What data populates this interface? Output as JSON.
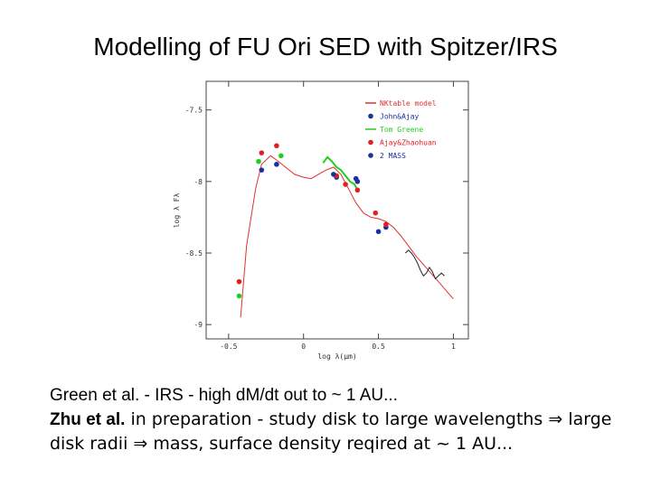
{
  "slide": {
    "title": "Modelling of FU Ori SED with Spitzer/IRS",
    "caption": {
      "line1": "Green et al. - IRS - high dM/dt out to ~ 1 AU...",
      "line2_bold": "Zhu et al.",
      "line2_rest": " in preparation - study disk to large wavelengths ⇒ large",
      "line3": "disk radii ⇒ mass, surface density reqired at ~ 1 AU..."
    }
  },
  "chart_data": {
    "type": "line",
    "title": "",
    "xlabel": "log λ(μm)",
    "ylabel": "log λ Fλ",
    "xlim": [
      -0.65,
      1.1
    ],
    "ylim": [
      -9.1,
      -7.3
    ],
    "xticks": [
      -0.5,
      0,
      0.5,
      1
    ],
    "xtick_labels": [
      "-0.5",
      "0",
      "0.5",
      "1"
    ],
    "yticks": [
      -7.5,
      -8,
      -8.5,
      -9
    ],
    "ytick_labels": [
      "-7.5",
      "-8",
      "-8.5",
      "-9"
    ],
    "legend": {
      "position": "top-right",
      "entries": [
        {
          "label": "NKtable model",
          "marker": "line",
          "color": "#e03030"
        },
        {
          "label": "John&Ajay",
          "marker": "dot",
          "color": "#1a2fa0"
        },
        {
          "label": "Tom Greene",
          "marker": "line",
          "color": "#22cc22"
        },
        {
          "label": "Ajay&Zhaohuan",
          "marker": "dot",
          "color": "#e02020"
        },
        {
          "label": "2 MASS",
          "marker": "dot",
          "color": "#1a2fa0"
        }
      ]
    },
    "series": [
      {
        "name": "NKtable model",
        "color": "#e03030",
        "x": [
          -0.42,
          -0.38,
          -0.32,
          -0.28,
          -0.22,
          -0.18,
          -0.12,
          -0.06,
          0.0,
          0.05,
          0.1,
          0.15,
          0.2,
          0.25,
          0.3,
          0.35,
          0.4,
          0.45,
          0.5,
          0.55,
          0.6,
          0.65,
          0.7,
          0.75,
          0.8,
          0.85,
          0.9,
          0.95,
          1.0
        ],
        "y": [
          -8.95,
          -8.45,
          -8.05,
          -7.88,
          -7.82,
          -7.85,
          -7.9,
          -7.95,
          -7.97,
          -7.98,
          -7.95,
          -7.92,
          -7.9,
          -7.95,
          -8.05,
          -8.15,
          -8.22,
          -8.25,
          -8.26,
          -8.28,
          -8.32,
          -8.38,
          -8.45,
          -8.52,
          -8.58,
          -8.64,
          -8.7,
          -8.76,
          -8.82
        ]
      },
      {
        "name": "Tom Greene",
        "color": "#22cc22",
        "x": [
          0.13,
          0.16,
          0.19,
          0.22,
          0.25,
          0.28,
          0.31,
          0.34,
          0.36
        ],
        "y": [
          -7.87,
          -7.83,
          -7.86,
          -7.9,
          -7.92,
          -7.96,
          -8.0,
          -8.02,
          -8.06
        ]
      },
      {
        "name": "observed (black)",
        "color": "#222222",
        "x": [
          0.68,
          0.7,
          0.72,
          0.74,
          0.76,
          0.78,
          0.8,
          0.82,
          0.84,
          0.86,
          0.88,
          0.9,
          0.92,
          0.94
        ],
        "y": [
          -8.5,
          -8.48,
          -8.5,
          -8.53,
          -8.57,
          -8.62,
          -8.66,
          -8.64,
          -8.6,
          -8.63,
          -8.68,
          -8.66,
          -8.64,
          -8.66
        ]
      },
      {
        "name": "John&Ajay",
        "color": "#1a2fa0",
        "x": [
          -0.28,
          -0.18,
          0.22,
          0.36,
          0.55
        ],
        "y": [
          -7.92,
          -7.88,
          -7.97,
          -8.0,
          -8.32
        ]
      },
      {
        "name": "Ajay&Zhaohuan",
        "color": "#e02020",
        "x": [
          -0.43,
          -0.28,
          -0.18,
          0.22,
          0.28,
          0.36,
          0.48,
          0.55
        ],
        "y": [
          -8.7,
          -7.8,
          -7.75,
          -7.96,
          -8.02,
          -8.06,
          -8.22,
          -8.3
        ]
      },
      {
        "name": "Tom Greene points",
        "color": "#22cc22",
        "x": [
          -0.43,
          -0.3,
          -0.15
        ],
        "y": [
          -8.8,
          -7.86,
          -7.82
        ]
      },
      {
        "name": "2 MASS",
        "color": "#1a2fa0",
        "x": [
          0.2,
          0.35,
          0.5
        ],
        "y": [
          -7.95,
          -7.98,
          -8.35
        ]
      }
    ]
  }
}
